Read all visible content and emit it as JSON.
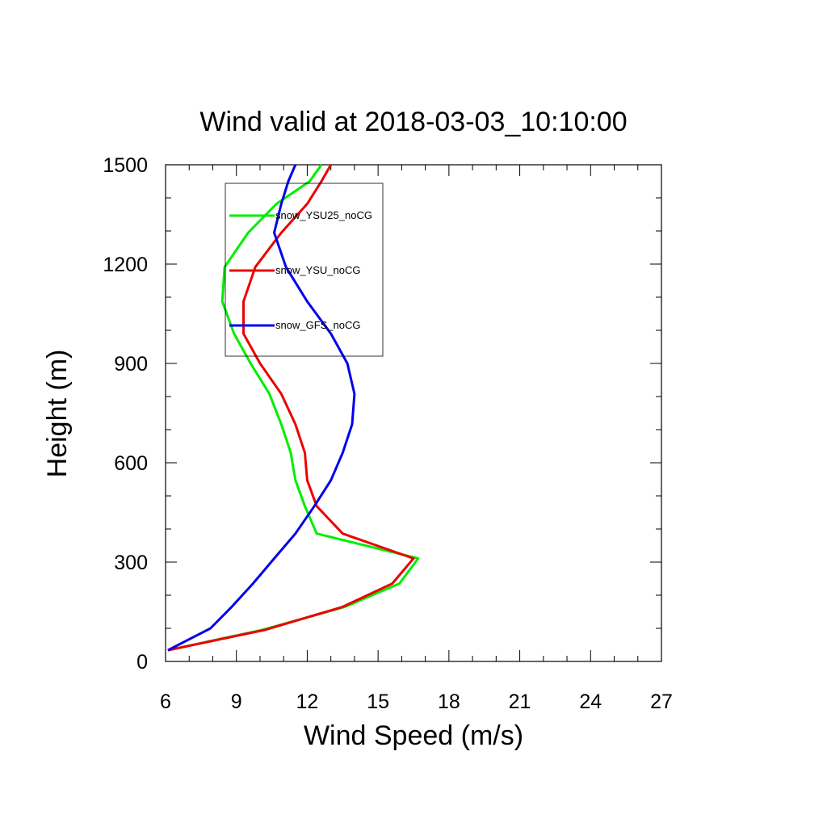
{
  "chart_data": {
    "type": "line",
    "title": "Wind valid at 2018-03-03_10:10:00",
    "xlabel": "Wind Speed (m/s)",
    "ylabel": "Height (m)",
    "xlim": [
      6,
      27
    ],
    "ylim": [
      0,
      1500
    ],
    "x_ticks": [
      "6",
      "9",
      "12",
      "15",
      "18",
      "21",
      "24",
      "27"
    ],
    "y_ticks": [
      "0",
      "300",
      "600",
      "900",
      "1200",
      "1500"
    ],
    "grid": false,
    "legend_position": "top-left, inside plot area",
    "series": [
      {
        "name": "snow_YSU25_noCG",
        "color": "#00ee00",
        "points": [
          [
            6.1,
            34
          ],
          [
            10.1,
            95
          ],
          [
            13.6,
            165
          ],
          [
            15.9,
            235
          ],
          [
            16.7,
            311
          ],
          [
            12.4,
            386
          ],
          [
            11.9,
            469
          ],
          [
            11.5,
            547
          ],
          [
            11.3,
            630
          ],
          [
            10.9,
            716
          ],
          [
            10.4,
            808
          ],
          [
            9.6,
            900
          ],
          [
            8.9,
            990
          ],
          [
            8.4,
            1087
          ],
          [
            8.5,
            1191
          ],
          [
            9.5,
            1295
          ],
          [
            10.7,
            1382
          ],
          [
            12.1,
            1450
          ],
          [
            12.6,
            1500
          ]
        ]
      },
      {
        "name": "snow_YSU_noCG",
        "color": "#ee0000",
        "points": [
          [
            6.1,
            34
          ],
          [
            10.2,
            95
          ],
          [
            13.5,
            165
          ],
          [
            15.6,
            235
          ],
          [
            16.5,
            311
          ],
          [
            13.5,
            386
          ],
          [
            12.4,
            469
          ],
          [
            12.0,
            547
          ],
          [
            11.9,
            630
          ],
          [
            11.5,
            716
          ],
          [
            10.9,
            808
          ],
          [
            10.0,
            900
          ],
          [
            9.3,
            990
          ],
          [
            9.3,
            1087
          ],
          [
            9.8,
            1191
          ],
          [
            10.9,
            1295
          ],
          [
            12.0,
            1382
          ],
          [
            12.6,
            1450
          ],
          [
            13.0,
            1500
          ]
        ]
      },
      {
        "name": "snow_GFS_noCG",
        "color": "#0000ee",
        "points": [
          [
            6.1,
            34
          ],
          [
            7.9,
            100
          ],
          [
            8.8,
            165
          ],
          [
            9.7,
            235
          ],
          [
            10.6,
            311
          ],
          [
            11.5,
            386
          ],
          [
            12.3,
            469
          ],
          [
            13.0,
            547
          ],
          [
            13.5,
            630
          ],
          [
            13.9,
            716
          ],
          [
            14.0,
            808
          ],
          [
            13.7,
            900
          ],
          [
            13.0,
            990
          ],
          [
            12.0,
            1087
          ],
          [
            11.1,
            1191
          ],
          [
            10.6,
            1295
          ],
          [
            10.9,
            1382
          ],
          [
            11.2,
            1450
          ],
          [
            11.5,
            1500
          ]
        ]
      }
    ]
  }
}
